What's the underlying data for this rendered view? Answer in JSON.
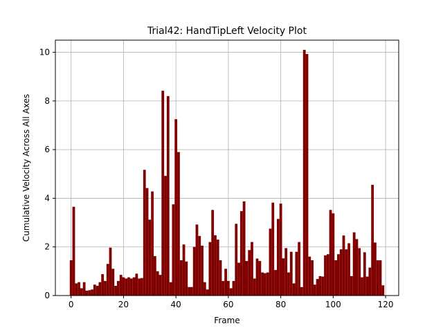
{
  "chart_data": {
    "type": "bar",
    "title": "Trial42: HandTipLeft Velocity Plot",
    "xlabel": "Frame",
    "ylabel": "Cumulative Velocity Across All Axes",
    "bar_color": "#800000",
    "grid_color": "#b0b0b0",
    "grid": true,
    "xlim": [
      -6,
      125
    ],
    "ylim": [
      0,
      10.5
    ],
    "xticks": [
      0,
      20,
      40,
      60,
      80,
      100,
      120
    ],
    "yticks": [
      0,
      2,
      4,
      6,
      8,
      10
    ],
    "x": [
      0,
      1,
      2,
      3,
      4,
      5,
      6,
      7,
      8,
      9,
      10,
      11,
      12,
      13,
      14,
      15,
      16,
      17,
      18,
      19,
      20,
      21,
      22,
      23,
      24,
      25,
      26,
      27,
      28,
      29,
      30,
      31,
      32,
      33,
      34,
      35,
      36,
      37,
      38,
      39,
      40,
      41,
      42,
      43,
      44,
      45,
      46,
      47,
      48,
      49,
      50,
      51,
      52,
      53,
      54,
      55,
      56,
      57,
      58,
      59,
      60,
      61,
      62,
      63,
      64,
      65,
      66,
      67,
      68,
      69,
      70,
      71,
      72,
      73,
      74,
      75,
      76,
      77,
      78,
      79,
      80,
      81,
      82,
      83,
      84,
      85,
      86,
      87,
      88,
      89,
      90,
      91,
      92,
      93,
      94,
      95,
      96,
      97,
      98,
      99,
      100,
      101,
      102,
      103,
      104,
      105,
      106,
      107,
      108,
      109,
      110,
      111,
      112,
      113,
      114,
      115,
      116,
      117,
      118,
      119
    ],
    "values": [
      1.45,
      3.65,
      0.5,
      0.55,
      0.3,
      0.55,
      0.2,
      0.22,
      0.25,
      0.45,
      0.4,
      0.55,
      0.88,
      0.6,
      1.3,
      1.97,
      1.1,
      0.4,
      0.6,
      0.85,
      0.75,
      0.7,
      0.75,
      0.7,
      0.75,
      0.9,
      0.7,
      0.72,
      5.17,
      4.42,
      3.12,
      4.28,
      1.62,
      1.0,
      0.85,
      8.42,
      4.92,
      8.2,
      0.55,
      3.75,
      7.25,
      5.9,
      1.45,
      2.1,
      1.4,
      0.35,
      0.35,
      2.0,
      2.92,
      2.45,
      2.05,
      0.55,
      0.25,
      2.2,
      3.52,
      2.48,
      2.3,
      1.45,
      0.6,
      1.1,
      0.6,
      0.3,
      0.6,
      2.95,
      1.35,
      3.47,
      3.87,
      1.42,
      1.87,
      2.2,
      0.7,
      1.52,
      1.42,
      0.95,
      0.92,
      0.95,
      2.75,
      3.82,
      1.05,
      3.15,
      3.78,
      1.53,
      1.95,
      0.95,
      1.8,
      0.5,
      1.8,
      2.2,
      0.35,
      10.1,
      9.93,
      1.6,
      1.45,
      0.45,
      0.68,
      0.8,
      0.78,
      1.65,
      1.7,
      3.52,
      3.38,
      1.45,
      1.7,
      1.9,
      2.47,
      1.9,
      2.15,
      0.8,
      2.6,
      2.32,
      1.95,
      0.75,
      1.78,
      0.78,
      1.15,
      4.55,
      2.18,
      1.45,
      1.45,
      0.42
    ]
  }
}
